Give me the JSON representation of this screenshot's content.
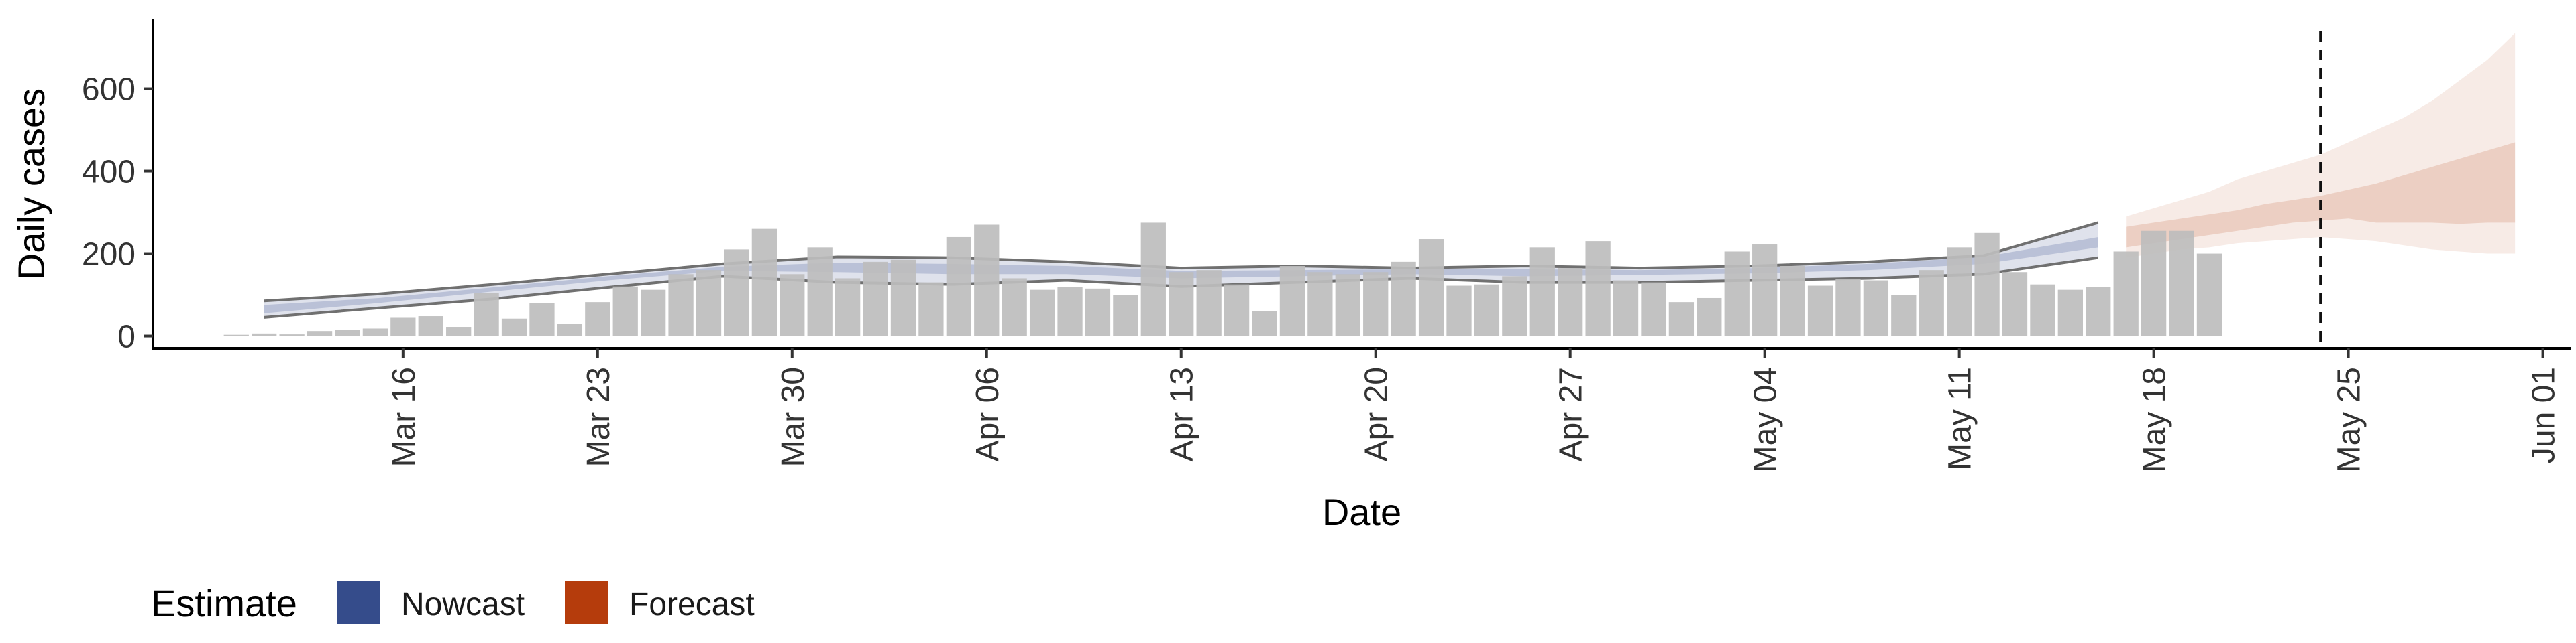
{
  "chart_data": {
    "type": "bar",
    "title": "",
    "xlabel": "Date",
    "ylabel": "Daily cases",
    "ylim": [
      -30,
      770
    ],
    "yticks": [
      0,
      200,
      400,
      600
    ],
    "x_axis_type": "date",
    "xlim": [
      "2020-03-07",
      "2020-06-02"
    ],
    "xticks": [
      {
        "date": "2020-03-16",
        "label": "Mar 16"
      },
      {
        "date": "2020-03-23",
        "label": "Mar 23"
      },
      {
        "date": "2020-03-30",
        "label": "Mar 30"
      },
      {
        "date": "2020-04-06",
        "label": "Apr 06"
      },
      {
        "date": "2020-04-13",
        "label": "Apr 13"
      },
      {
        "date": "2020-04-20",
        "label": "Apr 20"
      },
      {
        "date": "2020-04-27",
        "label": "Apr 27"
      },
      {
        "date": "2020-05-04",
        "label": "May 04"
      },
      {
        "date": "2020-05-11",
        "label": "May 11"
      },
      {
        "date": "2020-05-18",
        "label": "May 18"
      },
      {
        "date": "2020-05-25",
        "label": "May 25"
      },
      {
        "date": "2020-06-01",
        "label": "Jun 01"
      }
    ],
    "grid": false,
    "legend_position": "bottom-left",
    "legend": {
      "title": "Estimate",
      "items": [
        {
          "label": "Nowcast",
          "color": "#354c8b"
        },
        {
          "label": "Forecast",
          "color": "#b53c0c"
        }
      ]
    },
    "bar_color": "#bdbdbd",
    "bars": {
      "start_date": "2020-03-10",
      "values": [
        3,
        6,
        4,
        12,
        14,
        18,
        44,
        48,
        22,
        104,
        42,
        80,
        30,
        82,
        120,
        112,
        150,
        160,
        210,
        260,
        150,
        215,
        140,
        180,
        185,
        130,
        240,
        270,
        140,
        112,
        118,
        115,
        100,
        275,
        155,
        160,
        125,
        60,
        170,
        155,
        150,
        155,
        180,
        235,
        122,
        125,
        145,
        215,
        165,
        230,
        135,
        130,
        82,
        92,
        205,
        222,
        170,
        122,
        138,
        135,
        100,
        160,
        215,
        250,
        155,
        125,
        112,
        118,
        205,
        255,
        255,
        200
      ]
    },
    "nowcast": {
      "start_date": "2020-03-11",
      "end_date": "2020-05-16",
      "color": "#354c8b",
      "outer_lower": [
        45,
        68,
        90,
        118,
        145,
        130,
        125,
        135,
        120,
        130,
        140,
        130,
        130,
        135,
        140,
        150,
        190
      ],
      "outer_upper": [
        85,
        102,
        125,
        150,
        175,
        192,
        190,
        180,
        165,
        170,
        165,
        170,
        165,
        170,
        180,
        195,
        275
      ],
      "inner_lower": [
        55,
        80,
        108,
        135,
        158,
        155,
        150,
        150,
        140,
        145,
        150,
        145,
        148,
        152,
        160,
        175,
        215
      ],
      "inner_upper": [
        75,
        92,
        118,
        145,
        168,
        178,
        175,
        170,
        158,
        160,
        162,
        162,
        160,
        165,
        175,
        192,
        240
      ]
    },
    "forecast": {
      "start_date": "2020-05-17",
      "end_date": "2020-05-31",
      "color": "#b53c0c",
      "outer_lower": [
        190,
        200,
        210,
        215,
        225,
        230,
        235,
        240,
        235,
        230,
        220,
        210,
        205,
        200,
        200
      ],
      "outer_upper": [
        290,
        310,
        330,
        350,
        380,
        400,
        420,
        440,
        470,
        500,
        530,
        570,
        620,
        670,
        735
      ],
      "inner_lower": [
        215,
        225,
        235,
        245,
        255,
        265,
        275,
        280,
        285,
        275,
        275,
        275,
        272,
        275,
        275
      ],
      "inner_upper": [
        265,
        275,
        285,
        295,
        305,
        320,
        330,
        340,
        355,
        370,
        390,
        410,
        430,
        450,
        470
      ]
    },
    "reference_line": {
      "date": "2020-05-24",
      "style": "dashed"
    }
  }
}
